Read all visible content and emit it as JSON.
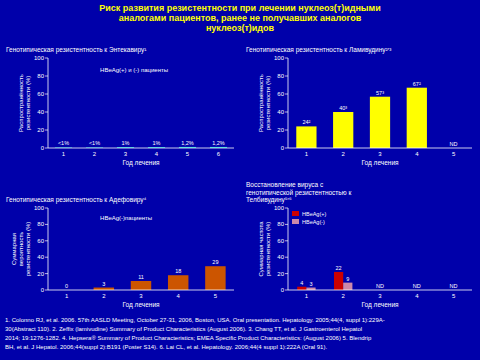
{
  "title": "Риск развития резистентности при лечении нуклеоз(т)идными\nаналогами пациентов, ранее не получавших аналогов\nнуклеоз(т)идов",
  "footnote": "1. Colonno RJ, et al. 2006. 57th AASLD Meeting, October 27-31, 2006, Boston, USA. Oral presentation. Hepatology. 2005;44(4, suppl 1):229A-\n30(Abstract 110). 2. Zeffix (lamivudine) Summary of Product Characteristics (August 2006). 3. Chang TT, et al. J Gastroenterol Hepatol\n2014; 19:1276-1282. 4. Hepsera® Summary of Product Characteristics; EMEA Specific Product Characteristics: (August 2006) 5. Blendrip\nBH, et al. J Hepatol. 2006;44(suppl 2):B191 (Poster S14). 6. Lai CL, et al. Hepatology. 2006;44(4 suppl 1):222A (Oral 91).",
  "chart_data": [
    {
      "type": "bar",
      "title": "Генотипическая резистентность к Энтекавиру¹",
      "xlabel": "Год лечения",
      "ylabel": "Распространённость\nрезистентности (%)",
      "categories": [
        1,
        2,
        3,
        4,
        5,
        6
      ],
      "values": [
        0.6,
        0.6,
        1.0,
        1.0,
        1.2,
        1.2
      ],
      "value_labels": [
        "<1%",
        "<1%",
        "1%",
        "1%",
        "1,2%",
        "1,2%"
      ],
      "color": "#00CCCC",
      "annotation": "HBeAg(+) и (-) пациенты",
      "ylim": [
        0,
        100
      ],
      "yticks": [
        0,
        20,
        40,
        60,
        80,
        100
      ],
      "grid": false,
      "data_labels": true
    },
    {
      "type": "bar",
      "title": "Генотипическая резистентность к Ламивудину²ʳ³",
      "xlabel": "Год лечения",
      "ylabel": "Распространённость\nрезистентности (%)",
      "categories": [
        1,
        2,
        3,
        4,
        5
      ],
      "values": [
        24,
        40,
        57,
        67,
        null
      ],
      "value_labels": [
        "24²",
        "40³",
        "57³",
        "67²",
        "ND"
      ],
      "color": "#FFFF00",
      "ylim": [
        0,
        100
      ],
      "yticks": [
        0,
        20,
        40,
        60,
        80,
        100
      ],
      "grid": false,
      "data_labels": true
    },
    {
      "type": "bar",
      "title": "Генотипическая резистентность к Адефовиру⁴",
      "xlabel": "Год лечения",
      "ylabel": "Суммарная\nвероятность\nрезистентности (%)",
      "categories": [
        1,
        2,
        3,
        4,
        5
      ],
      "values": [
        0,
        3,
        11,
        18,
        29
      ],
      "color": "#CC5500",
      "annotation": "HBeAg(-)пациенты",
      "ylim": [
        0,
        100
      ],
      "yticks": [
        0,
        20,
        40,
        60,
        80,
        100
      ],
      "grid": false,
      "data_labels": true
    },
    {
      "type": "bar",
      "title": "Восстановление вируса с\nгенотипической резистентностью к\nТелбивудину⁵ʳ⁶",
      "xlabel": "Год лечения",
      "ylabel": "Суммарная частота\nрезистентности (%)",
      "categories": [
        1,
        2,
        3,
        4,
        5
      ],
      "series": [
        {
          "name": "HBeAg(+)",
          "color": "#CC0000",
          "values": [
            4,
            22,
            null,
            null,
            null
          ],
          "value_labels": [
            "4",
            "22",
            "ND",
            "ND",
            "ND"
          ]
        },
        {
          "name": "HBeAg(-)",
          "color": "#CC88AA",
          "values": [
            3,
            9,
            null,
            null,
            null
          ]
        }
      ],
      "legend": "top-left",
      "ylim": [
        0,
        100
      ],
      "yticks": [
        0,
        20,
        40,
        60,
        80,
        100
      ],
      "grid": false,
      "data_labels": true
    }
  ]
}
